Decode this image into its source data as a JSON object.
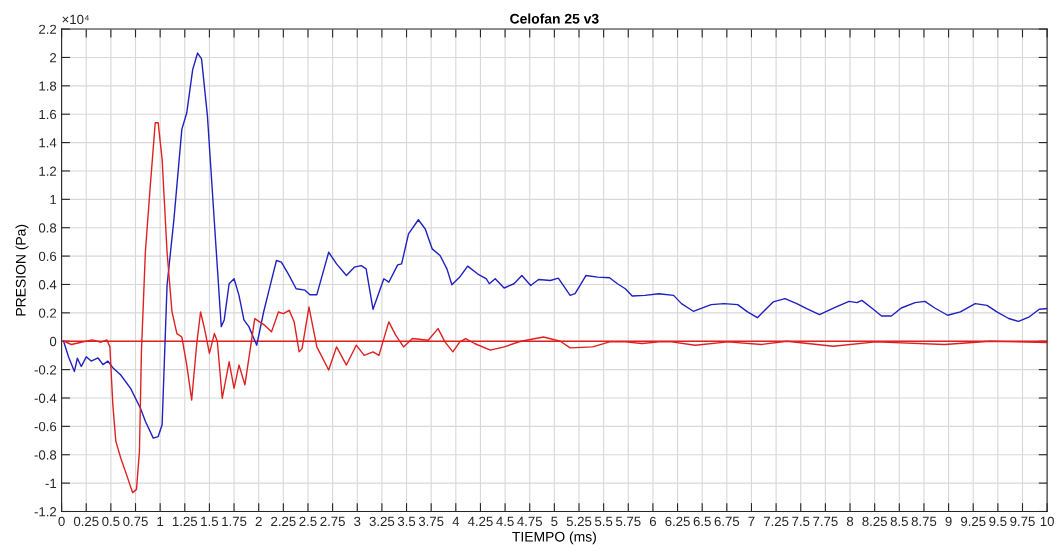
{
  "chart_data": {
    "type": "line",
    "title": "Celofan 25 v3",
    "xlabel": "TIEMPO (ms)",
    "ylabel": "PRESION (Pa)",
    "annotations": [
      "×10⁴"
    ],
    "xlim": [
      0,
      10
    ],
    "xticks": [
      0,
      0.25,
      0.5,
      0.75,
      1,
      1.25,
      1.5,
      1.75,
      2,
      2.25,
      2.5,
      2.75,
      3,
      3.25,
      3.5,
      3.75,
      4,
      4.25,
      4.5,
      4.75,
      5,
      5.25,
      5.5,
      5.75,
      6,
      6.25,
      6.5,
      6.75,
      7,
      7.25,
      7.5,
      7.75,
      8,
      8.25,
      8.5,
      8.75,
      9,
      9.25,
      9.5,
      9.75,
      10
    ],
    "ylim": [
      -1.2,
      2.2
    ],
    "yticks": [
      -1.2,
      -1,
      -0.8,
      -0.6,
      -0.4,
      -0.2,
      0,
      0.2,
      0.4,
      0.6,
      0.8,
      1,
      1.2,
      1.4,
      1.6,
      1.8,
      2,
      2.2
    ],
    "grid": true,
    "marker": "none",
    "line_style": "solid",
    "ref_lines": [
      {
        "axis": "y",
        "value": 0,
        "color": "#e02020"
      }
    ],
    "series": [
      {
        "color": "#2020c0",
        "x": [
          0.02,
          0.07,
          0.13,
          0.16,
          0.2,
          0.25,
          0.3,
          0.37,
          0.42,
          0.47,
          0.52,
          0.6,
          0.7,
          0.8,
          0.85,
          0.93,
          0.98,
          1.02,
          1.07,
          1.14,
          1.22,
          1.27,
          1.33,
          1.38,
          1.42,
          1.48,
          1.57,
          1.62,
          1.65,
          1.7,
          1.75,
          1.8,
          1.85,
          1.9,
          1.98,
          2.05,
          2.1,
          2.18,
          2.23,
          2.3,
          2.38,
          2.47,
          2.52,
          2.59,
          2.71,
          2.79,
          2.89,
          2.97,
          3.04,
          3.09,
          3.16,
          3.27,
          3.32,
          3.41,
          3.45,
          3.52,
          3.62,
          3.69,
          3.76,
          3.84,
          3.91,
          3.96,
          4.04,
          4.12,
          4.22,
          4.31,
          4.34,
          4.4,
          4.49,
          4.59,
          4.67,
          4.76,
          4.84,
          4.96,
          5.04,
          5.16,
          5.21,
          5.32,
          5.44,
          5.56,
          5.64,
          5.72,
          5.79,
          5.92,
          6.06,
          6.21,
          6.29,
          6.41,
          6.59,
          6.72,
          6.86,
          6.96,
          7.06,
          7.22,
          7.34,
          7.46,
          7.56,
          7.69,
          7.86,
          7.99,
          8.07,
          8.12,
          8.22,
          8.32,
          8.42,
          8.52,
          8.66,
          8.76,
          8.86,
          8.99,
          9.12,
          9.27,
          9.39,
          9.49,
          9.61,
          9.71,
          9.82,
          9.92,
          10.0
        ],
        "values": [
          0,
          -0.11,
          -0.213,
          -0.12,
          -0.178,
          -0.11,
          -0.14,
          -0.118,
          -0.165,
          -0.14,
          -0.187,
          -0.238,
          -0.332,
          -0.472,
          -0.564,
          -0.683,
          -0.672,
          -0.589,
          0.393,
          0.861,
          1.493,
          1.61,
          1.914,
          2.031,
          1.99,
          1.586,
          0.629,
          0.103,
          0.15,
          0.405,
          0.44,
          0.323,
          0.15,
          0.103,
          -0.028,
          0.206,
          0.346,
          0.569,
          0.557,
          0.475,
          0.37,
          0.36,
          0.328,
          0.328,
          0.627,
          0.545,
          0.463,
          0.522,
          0.533,
          0.51,
          0.225,
          0.44,
          0.416,
          0.538,
          0.545,
          0.756,
          0.856,
          0.791,
          0.651,
          0.604,
          0.51,
          0.398,
          0.452,
          0.529,
          0.475,
          0.44,
          0.405,
          0.44,
          0.375,
          0.405,
          0.463,
          0.393,
          0.435,
          0.428,
          0.445,
          0.323,
          0.335,
          0.463,
          0.452,
          0.447,
          0.405,
          0.37,
          0.319,
          0.323,
          0.335,
          0.323,
          0.265,
          0.211,
          0.258,
          0.265,
          0.258,
          0.207,
          0.166,
          0.277,
          0.3,
          0.265,
          0.23,
          0.188,
          0.242,
          0.281,
          0.272,
          0.288,
          0.234,
          0.178,
          0.178,
          0.234,
          0.272,
          0.281,
          0.234,
          0.183,
          0.207,
          0.265,
          0.253,
          0.207,
          0.16,
          0.14,
          0.172,
          0.225,
          0.23
        ]
      },
      {
        "color": "#e02020",
        "x": [
          0.02,
          0.1,
          0.2,
          0.31,
          0.4,
          0.46,
          0.49,
          0.52,
          0.55,
          0.6,
          0.67,
          0.72,
          0.76,
          0.79,
          0.81,
          0.85,
          0.9,
          0.95,
          0.98,
          1.02,
          1.07,
          1.12,
          1.17,
          1.22,
          1.27,
          1.32,
          1.37,
          1.41,
          1.45,
          1.5,
          1.55,
          1.58,
          1.63,
          1.7,
          1.75,
          1.8,
          1.86,
          1.91,
          1.96,
          2.01,
          2.06,
          2.13,
          2.2,
          2.25,
          2.31,
          2.36,
          2.41,
          2.44,
          2.51,
          2.59,
          2.71,
          2.79,
          2.89,
          2.99,
          3.07,
          3.16,
          3.22,
          3.32,
          3.39,
          3.47,
          3.56,
          3.72,
          3.82,
          3.89,
          3.97,
          4.04,
          4.1,
          4.19,
          4.35,
          4.49,
          4.66,
          4.89,
          5.06,
          5.16,
          5.39,
          5.56,
          5.72,
          5.89,
          6.06,
          6.19,
          6.43,
          6.76,
          7.1,
          7.36,
          7.83,
          8.26,
          8.96,
          9.42,
          10.0
        ],
        "values": [
          0,
          -0.023,
          -0.007,
          0.009,
          -0.007,
          0.009,
          -0.04,
          -0.449,
          -0.704,
          -0.823,
          -0.963,
          -1.067,
          -1.044,
          -0.775,
          -0.075,
          0.629,
          1.095,
          1.54,
          1.54,
          1.282,
          0.629,
          0.208,
          0.054,
          0.03,
          -0.168,
          -0.414,
          -0.028,
          0.206,
          0.089,
          -0.086,
          0.054,
          0,
          -0.402,
          -0.145,
          -0.332,
          -0.168,
          -0.308,
          -0.075,
          0.159,
          0.136,
          0.113,
          0.066,
          0.206,
          0.195,
          0.218,
          0.136,
          -0.075,
          -0.052,
          0.241,
          -0.04,
          -0.203,
          -0.04,
          -0.168,
          -0.028,
          -0.1,
          -0.075,
          -0.1,
          0.136,
          0.043,
          -0.04,
          0.019,
          0.007,
          0.089,
          -0.005,
          -0.075,
          -0.005,
          0.019,
          -0.016,
          -0.063,
          -0.04,
          0,
          0.03,
          0,
          -0.047,
          -0.04,
          -0.005,
          -0.005,
          -0.016,
          -0.005,
          -0.005,
          -0.028,
          -0.005,
          -0.023,
          0,
          -0.035,
          -0.005,
          -0.023,
          0,
          -0.009
        ]
      }
    ]
  }
}
